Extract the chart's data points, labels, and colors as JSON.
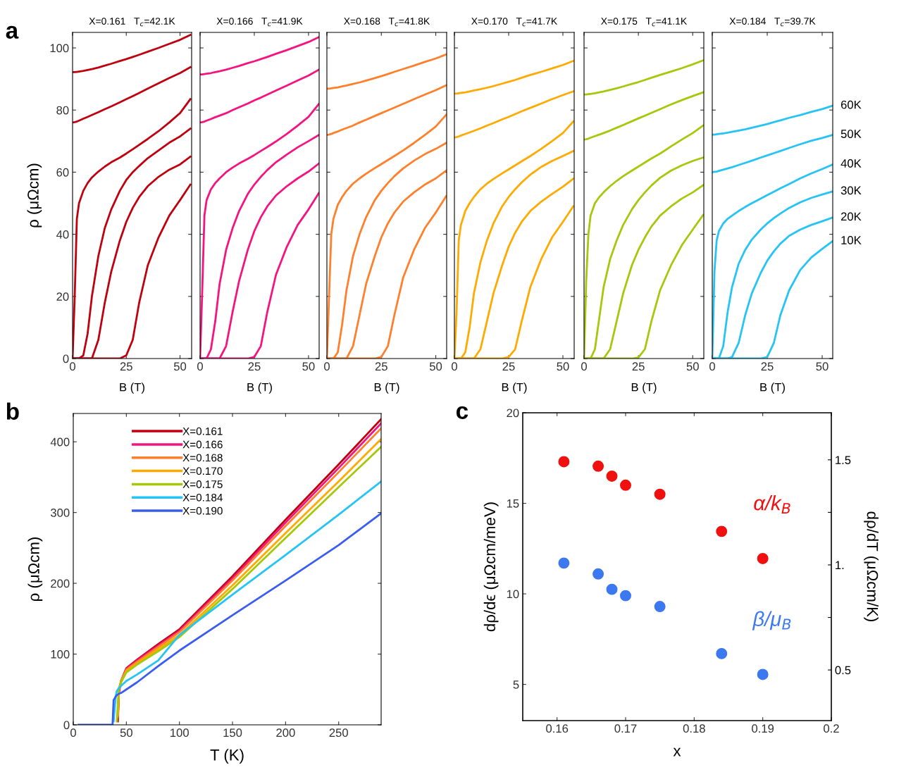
{
  "chart_data": [
    {
      "type": "line",
      "title": "X=0.161   T$_{c}$=42.1K",
      "xlabel": "B (T)",
      "ylabel": "ρ (μΩcm)",
      "annotations": [
        "a"
      ],
      "xlim": [
        0,
        55.4
      ],
      "xticks": [
        0,
        25,
        50
      ],
      "ylim": [
        0,
        105
      ],
      "yticks": [
        0,
        20,
        40,
        60,
        80,
        100
      ],
      "x": [
        0,
        1,
        2,
        3,
        5,
        7,
        9,
        12,
        15,
        18,
        22,
        25,
        28,
        31,
        35,
        40,
        45,
        50,
        54.8
      ],
      "series": [
        {
          "color": "#c0000f",
          "values": [
            92.2,
            92.2,
            92.3,
            92.4,
            92.6,
            92.9,
            93.2,
            93.7,
            94.3,
            94.9,
            95.8,
            96.4,
            97.1,
            97.8,
            98.8,
            100,
            101.3,
            102.6,
            104.2
          ]
        },
        {
          "color": "#c0000f",
          "values": [
            76,
            76.1,
            76.3,
            76.6,
            77.2,
            77.8,
            78.4,
            79.3,
            80.3,
            81.2,
            82.5,
            83.5,
            84.5,
            85.5,
            86.9,
            88.6,
            90.3,
            91.9,
            93.8
          ]
        },
        {
          "color": "#c0000f",
          "values": [
            0,
            20,
            45,
            50,
            54,
            56.5,
            58.3,
            60.2,
            61.8,
            63.2,
            64.7,
            66,
            67.4,
            68.8,
            70.7,
            73.2,
            76,
            79,
            83.5
          ]
        },
        {
          "color": "#c0000f",
          "values": [
            0,
            0,
            0,
            0,
            1,
            8,
            20,
            33,
            42,
            48,
            54,
            57.5,
            60,
            62,
            64.5,
            67,
            69.5,
            71.5,
            74
          ]
        },
        {
          "color": "#c0000f",
          "values": [
            0,
            0,
            0,
            0,
            0,
            0,
            0,
            6,
            18,
            28,
            38,
            44,
            48.5,
            52,
            55.5,
            58.5,
            60.8,
            62.5,
            65
          ]
        },
        {
          "color": "#c0000f",
          "values": [
            0,
            0,
            0,
            0,
            0,
            0,
            0,
            0,
            0,
            0,
            0,
            1,
            6,
            18,
            30,
            39,
            46,
            51,
            56
          ]
        }
      ]
    },
    {
      "type": "line",
      "title": "X=0.166   T$_{c}$=41.9K",
      "xlabel": "B (T)",
      "tick_labels": "x",
      "xlim": [
        0,
        54.9
      ],
      "xticks": [
        0,
        25,
        50
      ],
      "ylim": [
        0,
        105
      ],
      "yticks": [
        0,
        20,
        40,
        60,
        80,
        100
      ],
      "x": [
        0,
        1,
        2,
        3,
        5,
        7,
        9,
        12,
        15,
        18,
        22,
        25,
        28,
        31,
        35,
        40,
        45,
        50,
        54.8
      ],
      "series": [
        {
          "color": "#f5147f",
          "values": [
            91.5,
            91.5,
            91.6,
            91.7,
            91.9,
            92.2,
            92.5,
            93,
            93.6,
            94.2,
            95.1,
            95.7,
            96.4,
            97.1,
            98.1,
            99.3,
            100.6,
            101.9,
            103.5
          ]
        },
        {
          "color": "#f5147f",
          "values": [
            76,
            76.1,
            76.3,
            76.6,
            77.1,
            77.7,
            78.2,
            79,
            80,
            80.9,
            82.1,
            83.1,
            84,
            85,
            86.3,
            87.9,
            89.5,
            91.1,
            93
          ]
        },
        {
          "color": "#f5147f",
          "values": [
            0,
            22,
            46,
            51,
            54.5,
            56.5,
            58,
            60,
            61.5,
            62.8,
            64.3,
            65.5,
            66.8,
            68.1,
            69.9,
            72.3,
            75,
            77.8,
            82
          ]
        },
        {
          "color": "#f5147f",
          "values": [
            0,
            0,
            0,
            0,
            3,
            12,
            24,
            35,
            42,
            47.5,
            53,
            56,
            58.5,
            60.7,
            63.2,
            65.7,
            68,
            70,
            72
          ]
        },
        {
          "color": "#f5147f",
          "values": [
            0,
            0,
            0,
            0,
            0,
            0,
            0,
            4,
            15,
            25,
            35,
            41,
            45.5,
            49,
            52.5,
            55.5,
            58,
            60.2,
            62.8
          ]
        },
        {
          "color": "#f5147f",
          "values": [
            0,
            0,
            0,
            0,
            0,
            0,
            0,
            0,
            0,
            0,
            0,
            0.5,
            4,
            15,
            27,
            36,
            43,
            48,
            53.3
          ]
        }
      ]
    },
    {
      "type": "line",
      "title": "X=0.168   T$_{c}$=41.8K",
      "xlabel": "B (T)",
      "tick_labels": "x",
      "xlim": [
        0,
        55
      ],
      "xticks": [
        0,
        25,
        50
      ],
      "ylim": [
        0,
        105
      ],
      "yticks": [
        0,
        20,
        40,
        60,
        80,
        100
      ],
      "x": [
        0,
        1,
        2,
        3,
        5,
        7,
        9,
        12,
        15,
        18,
        22,
        25,
        28,
        31,
        35,
        40,
        45,
        50,
        54.8
      ],
      "series": [
        {
          "color": "#ff7f2a",
          "values": [
            86.9,
            86.9,
            87,
            87.1,
            87.3,
            87.6,
            87.9,
            88.4,
            88.9,
            89.5,
            90.3,
            90.9,
            91.6,
            92.3,
            93.2,
            94.3,
            95.5,
            96.6,
            97.9
          ]
        },
        {
          "color": "#ff7f2a",
          "values": [
            72,
            72.1,
            72.3,
            72.6,
            73.1,
            73.7,
            74.2,
            75,
            76,
            76.9,
            78.1,
            79,
            79.9,
            80.8,
            82,
            83.5,
            85,
            86.4,
            88
          ]
        },
        {
          "color": "#ff7f2a",
          "values": [
            0,
            20,
            40,
            45,
            49.5,
            52,
            54,
            56.3,
            58,
            59.5,
            61.3,
            62.6,
            63.9,
            65.2,
            67,
            69.4,
            72,
            74.7,
            78.5
          ]
        },
        {
          "color": "#ff7f2a",
          "values": [
            0,
            0,
            0,
            0,
            2,
            11,
            22,
            33,
            40,
            45.5,
            51,
            54,
            56.5,
            58.7,
            61.2,
            63.7,
            65.8,
            67.5,
            69.4
          ]
        },
        {
          "color": "#ff7f2a",
          "values": [
            0,
            0,
            0,
            0,
            0,
            0,
            0,
            4,
            14,
            24,
            33,
            39,
            43.5,
            47,
            50.5,
            53.5,
            56,
            58,
            60.5
          ]
        },
        {
          "color": "#ff7f2a",
          "values": [
            0,
            0,
            0,
            0,
            0,
            0,
            0,
            0,
            0,
            0,
            0,
            0.5,
            4,
            14,
            26,
            35,
            42,
            47,
            52.3
          ]
        }
      ]
    },
    {
      "type": "line",
      "title": "X=0.170   T$_{c}$=41.7K",
      "xlabel": "B (T)",
      "tick_labels": "x",
      "xlim": [
        0,
        55.2
      ],
      "xticks": [
        0,
        25,
        50
      ],
      "ylim": [
        0,
        105
      ],
      "yticks": [
        0,
        20,
        40,
        60,
        80,
        100
      ],
      "x": [
        0,
        1,
        2,
        3,
        5,
        7,
        9,
        12,
        15,
        18,
        22,
        25,
        28,
        31,
        35,
        40,
        45,
        50,
        54.8
      ],
      "series": [
        {
          "color": "#ffaa00",
          "values": [
            85.3,
            85.3,
            85.4,
            85.5,
            85.7,
            86,
            86.3,
            86.7,
            87.2,
            87.7,
            88.5,
            89.1,
            89.7,
            90.4,
            91.3,
            92.3,
            93.4,
            94.5,
            95.8
          ]
        },
        {
          "color": "#ffaa00",
          "values": [
            71.2,
            71.3,
            71.5,
            71.8,
            72.3,
            72.8,
            73.3,
            74.1,
            75,
            75.8,
            77,
            77.8,
            78.7,
            79.6,
            80.7,
            82.1,
            83.5,
            84.8,
            86
          ]
        },
        {
          "color": "#ffaa00",
          "values": [
            0,
            15,
            38,
            43,
            47.5,
            50,
            52,
            54.5,
            56.3,
            57.8,
            59.6,
            60.9,
            62.2,
            63.5,
            65.2,
            67.5,
            70,
            72.6,
            76.3
          ]
        },
        {
          "color": "#ffaa00",
          "values": [
            0,
            0,
            0,
            0,
            2,
            10,
            21,
            31,
            38,
            43.5,
            49,
            52,
            54.5,
            56.7,
            59.2,
            61.7,
            63.6,
            65.2,
            66.8
          ]
        },
        {
          "color": "#ffaa00",
          "values": [
            0,
            0,
            0,
            0,
            0,
            0,
            0,
            3,
            12,
            21,
            30,
            36,
            40.5,
            44,
            47.5,
            50.5,
            53,
            55.3,
            57.9
          ]
        },
        {
          "color": "#ffaa00",
          "values": [
            0,
            0,
            0,
            0,
            0,
            0,
            0,
            0,
            0,
            0,
            0,
            0.5,
            3,
            12,
            23,
            32,
            39,
            44,
            49
          ]
        }
      ]
    },
    {
      "type": "line",
      "title": "X=0.175   T$_{c}$=41.1K",
      "xlabel": "B (T)",
      "tick_labels": "x",
      "xlim": [
        0,
        55.1
      ],
      "xticks": [
        0,
        25,
        50
      ],
      "ylim": [
        0,
        105
      ],
      "yticks": [
        0,
        20,
        40,
        60,
        80,
        100
      ],
      "x": [
        0,
        1,
        2,
        3,
        5,
        7,
        9,
        12,
        15,
        18,
        22,
        25,
        28,
        31,
        35,
        40,
        45,
        50,
        54.8
      ],
      "series": [
        {
          "color": "#a6c80a",
          "values": [
            85,
            85,
            85.1,
            85.2,
            85.4,
            85.7,
            86,
            86.5,
            87,
            87.6,
            88.4,
            89,
            89.7,
            90.4,
            91.3,
            92.4,
            93.5,
            94.7,
            96
          ]
        },
        {
          "color": "#a6c80a",
          "values": [
            70.5,
            70.6,
            70.8,
            71.1,
            71.6,
            72.1,
            72.6,
            73.4,
            74.3,
            75.2,
            76.4,
            77.3,
            78.2,
            79.1,
            80.3,
            81.8,
            83.2,
            84.5,
            85.7
          ]
        },
        {
          "color": "#a6c80a",
          "values": [
            0,
            25,
            40,
            46,
            50,
            52,
            53.5,
            55.5,
            57.2,
            58.7,
            60.5,
            61.8,
            63.1,
            64.4,
            66,
            68.3,
            70.5,
            72.6,
            75
          ]
        },
        {
          "color": "#a6c80a",
          "values": [
            0,
            0,
            0,
            0,
            3,
            13,
            23,
            32,
            38,
            43,
            48,
            51,
            53.5,
            55.7,
            58.2,
            60.5,
            62.2,
            63.6,
            64.7
          ]
        },
        {
          "color": "#a6c80a",
          "values": [
            0,
            0,
            0,
            0,
            0,
            0,
            0,
            3,
            12,
            21,
            30,
            35,
            39,
            42.5,
            46,
            49,
            51.5,
            53.5,
            55.8
          ]
        },
        {
          "color": "#a6c80a",
          "values": [
            0,
            0,
            0,
            0,
            0,
            0,
            0,
            0,
            0,
            0,
            0,
            0.3,
            3,
            12,
            22,
            30,
            36.5,
            41.5,
            46.2
          ]
        }
      ]
    },
    {
      "type": "line",
      "title": "X=0.184   T$_{c}$=39.7K",
      "xlabel": "B (T)",
      "tick_labels": "x",
      "xlim": [
        0,
        54.8
      ],
      "xticks": [
        0,
        25,
        50
      ],
      "ylim": [
        0,
        105
      ],
      "yticks": [
        0,
        20,
        40,
        60,
        80,
        100
      ],
      "x": [
        0,
        1,
        2,
        3,
        5,
        7,
        9,
        12,
        15,
        18,
        22,
        25,
        28,
        31,
        35,
        40,
        45,
        50,
        54.8
      ],
      "series": [
        {
          "name": "60K",
          "color": "#25c4f5",
          "values": [
            72.1,
            72.1,
            72.2,
            72.3,
            72.5,
            72.7,
            73,
            73.4,
            73.8,
            74.3,
            75,
            75.5,
            76.1,
            76.7,
            77.5,
            78.4,
            79.4,
            80.3,
            81.4
          ]
        },
        {
          "name": "50K",
          "color": "#25c4f5",
          "values": [
            60,
            60.1,
            60.2,
            60.4,
            60.8,
            61.2,
            61.6,
            62.3,
            63,
            63.7,
            64.7,
            65.4,
            66.1,
            66.8,
            67.8,
            69,
            70.1,
            71,
            72
          ]
        },
        {
          "name": "40K",
          "color": "#25c4f5",
          "values": [
            0,
            28,
            38,
            41,
            43.5,
            45,
            46,
            47.5,
            48.8,
            50,
            51.5,
            52.6,
            53.7,
            54.8,
            56.2,
            58,
            59.6,
            61,
            62.5
          ]
        },
        {
          "name": "30K",
          "color": "#25c4f5",
          "values": [
            0,
            0,
            0,
            0,
            4,
            15,
            23,
            30.5,
            35,
            38.3,
            41.5,
            43.5,
            45.2,
            46.7,
            48.5,
            50.3,
            51.7,
            52.8,
            53.8
          ]
        },
        {
          "name": "20K",
          "color": "#25c4f5",
          "values": [
            0,
            0,
            0,
            0,
            0,
            0,
            0.5,
            5,
            14,
            21,
            27.5,
            31.5,
            34.5,
            37,
            39.5,
            41.5,
            43,
            44.2,
            45.4
          ]
        },
        {
          "name": "10K",
          "color": "#25c4f5",
          "values": [
            0,
            0,
            0,
            0,
            0,
            0,
            0,
            0,
            0,
            0,
            0,
            0.5,
            5,
            14,
            22,
            28.5,
            32.5,
            35.3,
            37.8
          ]
        }
      ]
    },
    {
      "type": "line",
      "xlabel": "T (K)",
      "ylabel": "ρ (μΩcm)",
      "annotations": [
        "b"
      ],
      "legend": "top left",
      "xlim": [
        0,
        290
      ],
      "xticks": [
        0,
        50,
        100,
        150,
        200,
        250
      ],
      "ylim": [
        0,
        440
      ],
      "yticks": [
        0,
        100,
        200,
        300,
        400
      ],
      "x": [
        5,
        37,
        38,
        40,
        41,
        42,
        43,
        45,
        50,
        60,
        80,
        100,
        150,
        200,
        250,
        290
      ],
      "series": [
        {
          "name": "X=0.161",
          "color": "#c0000f",
          "values": [
            null,
            null,
            null,
            null,
            null,
            5,
            45,
            62,
            80,
            92,
            114,
            135,
            210,
            290,
            368,
            432
          ]
        },
        {
          "name": "X=0.166",
          "color": "#f5147f",
          "values": [
            null,
            null,
            null,
            null,
            null,
            10,
            48,
            62,
            79,
            91,
            112,
            133,
            207,
            286,
            363,
            426
          ]
        },
        {
          "name": "X=0.168",
          "color": "#ff7f2a",
          "values": [
            null,
            null,
            null,
            null,
            null,
            12,
            50,
            62,
            78,
            89,
            110,
            131,
            204,
            281,
            357,
            419
          ]
        },
        {
          "name": "X=0.170",
          "color": "#ffaa00",
          "values": [
            null,
            null,
            null,
            null,
            null,
            15,
            50,
            61,
            76,
            87,
            107,
            127,
            197,
            271,
            344,
            404
          ]
        },
        {
          "name": "X=0.175",
          "color": "#a6c80a",
          "values": [
            null,
            null,
            null,
            null,
            5,
            30,
            52,
            60,
            74,
            85,
            104,
            124,
            192,
            264,
            336,
            393
          ]
        },
        {
          "name": "X=0.184",
          "color": "#25c4f5",
          "values": [
            null,
            null,
            5,
            40,
            48,
            50,
            52,
            55,
            62,
            71,
            91,
            127,
            184,
            240,
            297,
            344
          ]
        },
        {
          "name": "X=0.190",
          "color": "#3a5cf0",
          "values": [
            0,
            0,
            35,
            40,
            42,
            43,
            44,
            45,
            50,
            60,
            83,
            105,
            155,
            204,
            254,
            299
          ]
        }
      ]
    },
    {
      "type": "scatter",
      "xlabel": "x",
      "ylabel": "dρ/dϵ (μΩcm/meV)",
      "y2label": "dρ/dT (μΩcm/K)",
      "annotations": [
        "c"
      ],
      "marker": "circle",
      "xlim": [
        0.155,
        0.2
      ],
      "xticks": [
        0.16,
        0.17,
        0.18,
        0.19,
        0.2
      ],
      "ylim": [
        3,
        20
      ],
      "yticks": [
        5,
        10,
        15,
        20
      ],
      "y2lim": [
        0.259,
        1.724
      ],
      "y2ticks": [
        {
          "value": 0.5,
          "label": "0.5"
        },
        {
          "value": 0.75,
          "label": null
        },
        {
          "value": 1,
          "label": "1."
        },
        {
          "value": 1.25,
          "label": null
        },
        {
          "value": 1.5,
          "label": "1.5"
        }
      ],
      "x": [
        0.161,
        0.166,
        0.168,
        0.17,
        0.175,
        0.184,
        0.19
      ],
      "series": [
        {
          "name": "α/k$_{B}$",
          "color": "#f01010",
          "values": [
            17.3,
            17.05,
            16.5,
            16.0,
            15.5,
            13.45,
            11.95
          ]
        },
        {
          "name": "β/μ$_{B}$",
          "color": "#3c78f0",
          "values": [
            11.7,
            11.1,
            10.25,
            9.9,
            9.3,
            6.7,
            5.55
          ]
        }
      ]
    }
  ]
}
